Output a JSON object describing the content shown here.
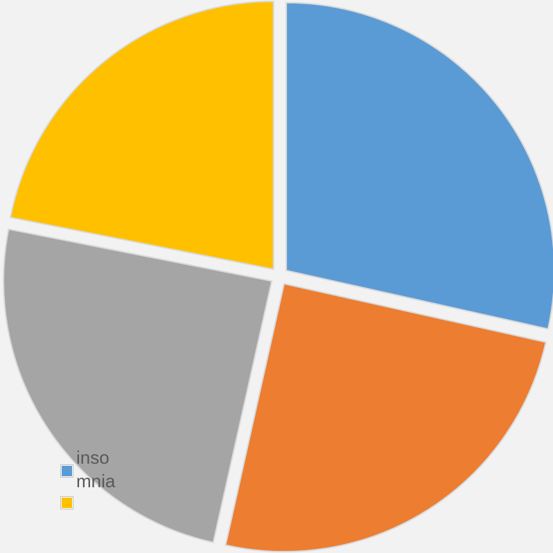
{
  "chart_data": {
    "type": "pie",
    "title": "",
    "exploded": true,
    "start_angle_deg": 0,
    "direction": "clockwise",
    "slices": [
      {
        "value": 28.5,
        "color": "#5b9bd5"
      },
      {
        "value": 25.0,
        "color": "#ed7d31"
      },
      {
        "value": 24.6,
        "color": "#a5a5a5"
      },
      {
        "value": 21.9,
        "color": "#ffc000"
      }
    ],
    "legend": {
      "placement": "bottom-left",
      "entries": [
        {
          "label": "inso\nmnia",
          "color": "#5b9bd5"
        },
        {
          "label": "",
          "color": "#ffc000"
        }
      ]
    }
  }
}
